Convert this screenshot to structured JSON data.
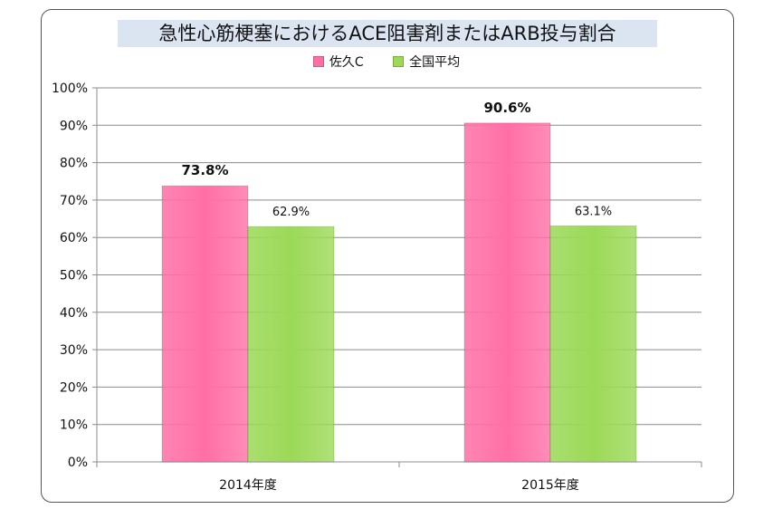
{
  "chart_data": {
    "type": "bar",
    "title": "急性心筋梗塞におけるACE阻害剤またはARB投与割合",
    "categories": [
      "2014年度",
      "2015年度"
    ],
    "series": [
      {
        "name": "佐久C",
        "values": [
          73.8,
          90.6
        ],
        "color": "#ff6fa6",
        "labels": [
          "73.8%",
          "90.6%"
        ]
      },
      {
        "name": "全国平均",
        "values": [
          62.9,
          63.1
        ],
        "color": "#9bd957",
        "labels": [
          "62.9%",
          "63.1%"
        ]
      }
    ],
    "ylim": [
      0,
      100
    ],
    "yticks": [
      "0%",
      "10%",
      "20%",
      "30%",
      "40%",
      "50%",
      "60%",
      "70%",
      "80%",
      "90%",
      "100%"
    ],
    "grid": true,
    "legend_position": "top"
  }
}
